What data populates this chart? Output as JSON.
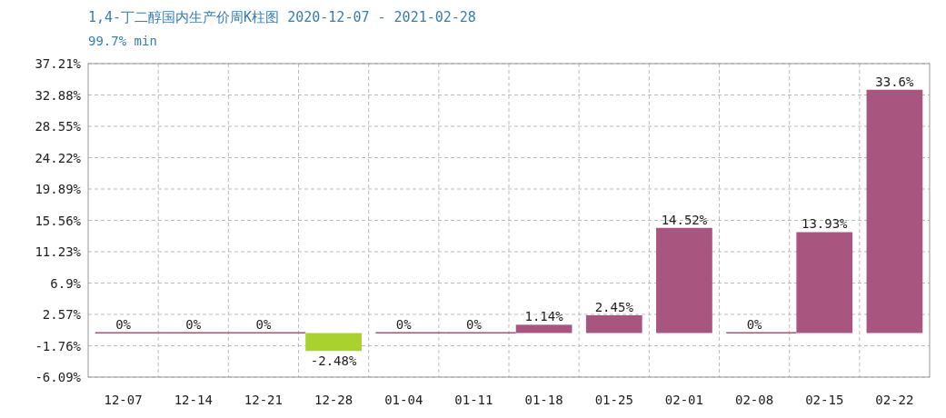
{
  "chart_data": {
    "type": "bar",
    "title": "1,4-丁二醇国内生产价周K柱图 2020-12-07 - 2021-02-28",
    "subtitle": "99.7% min",
    "categories": [
      "12-07",
      "12-14",
      "12-21",
      "12-28",
      "01-04",
      "01-11",
      "01-18",
      "01-25",
      "02-01",
      "02-08",
      "02-15",
      "02-22"
    ],
    "values": [
      0,
      0,
      0,
      -2.48,
      0,
      0,
      1.14,
      2.45,
      14.52,
      0,
      13.93,
      33.6
    ],
    "colors": [
      "#a8557f",
      "#a8557f",
      "#a8557f",
      "#a9d22f",
      "#a8557f",
      "#a8557f",
      "#a8557f",
      "#a8557f",
      "#a8557f",
      "#a8557f",
      "#a8557f",
      "#a8557f"
    ],
    "value_labels": [
      "0%",
      "0%",
      "0%",
      "-2.48%",
      "0%",
      "0%",
      "1.14%",
      "2.45%",
      "14.52%",
      "0%",
      "13.93%",
      "33.6%"
    ],
    "ylim": [
      -6.09,
      37.21
    ],
    "yticks": [
      {
        "value": -6.09,
        "label": "-6.09%"
      },
      {
        "value": -1.76,
        "label": "-1.76%"
      },
      {
        "value": 2.57,
        "label": "2.57%"
      },
      {
        "value": 6.9,
        "label": "6.9%"
      },
      {
        "value": 11.23,
        "label": "11.23%"
      },
      {
        "value": 15.56,
        "label": "15.56%"
      },
      {
        "value": 19.89,
        "label": "19.89%"
      },
      {
        "value": 24.22,
        "label": "24.22%"
      },
      {
        "value": 28.55,
        "label": "28.55%"
      },
      {
        "value": 32.88,
        "label": "32.88%"
      },
      {
        "value": 37.21,
        "label": "37.21%"
      }
    ],
    "grid": true
  }
}
